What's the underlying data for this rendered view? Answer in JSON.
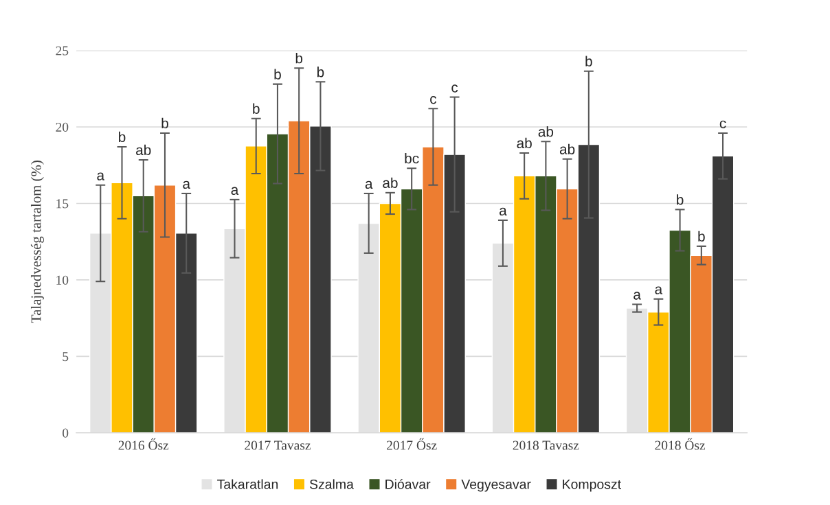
{
  "chart_data": {
    "type": "bar",
    "ylabel": "Talajnedvesség tartalom (%)",
    "categories": [
      "2016 Ősz",
      "2017 Tavasz",
      "2017 Ősz",
      "2018 Tavasz",
      "2018 Ősz"
    ],
    "series": [
      {
        "name": "Takaratlan",
        "color": "#e3e3e3",
        "values": [
          13.05,
          13.35,
          13.7,
          12.4,
          8.15
        ],
        "errors": [
          3.15,
          1.9,
          1.95,
          1.5,
          0.25
        ]
      },
      {
        "name": "Szalma",
        "color": "#ffc000",
        "values": [
          16.35,
          18.75,
          15.0,
          16.8,
          7.9
        ],
        "errors": [
          2.35,
          1.8,
          0.7,
          1.5,
          0.85
        ]
      },
      {
        "name": "Dióavar",
        "color": "#3a5624",
        "values": [
          15.5,
          19.55,
          15.95,
          16.8,
          13.25
        ],
        "errors": [
          2.35,
          3.25,
          1.35,
          2.25,
          1.35
        ]
      },
      {
        "name": "Vegyesavar",
        "color": "#ed7d31",
        "values": [
          16.2,
          20.4,
          18.7,
          15.95,
          11.6
        ],
        "errors": [
          3.4,
          3.45,
          2.5,
          1.95,
          0.6
        ]
      },
      {
        "name": "Komposzt",
        "color": "#3a3a3a",
        "values": [
          13.05,
          20.05,
          18.2,
          18.85,
          18.1
        ],
        "errors": [
          2.6,
          2.9,
          3.75,
          4.8,
          1.5
        ]
      }
    ],
    "annotations": [
      "a",
      "a",
      "a",
      "a",
      "a",
      "b",
      "b",
      "ab",
      "ab",
      "a",
      "ab",
      "b",
      "bc",
      "ab",
      "b",
      "b",
      "b",
      "c",
      "ab",
      "b",
      "a",
      "b",
      "c",
      "b",
      "c"
    ],
    "ylim": [
      0,
      25
    ],
    "yticks": [
      0,
      5,
      10,
      15,
      20,
      25
    ],
    "grid": "y",
    "legend": "bottom"
  }
}
